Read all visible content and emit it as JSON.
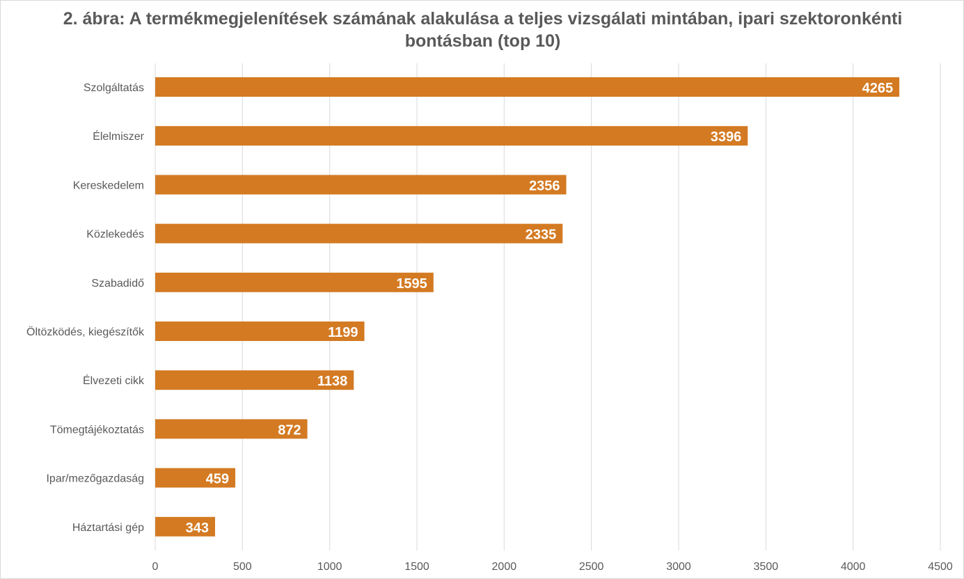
{
  "chart_data": {
    "type": "bar",
    "orientation": "horizontal",
    "title": "2. ábra: A termékmegjelenítések számának alakulása a teljes vizsgálati mintában, ipari szektoronkénti bontásban (top 10)",
    "categories": [
      "Szolgáltatás",
      "Élelmiszer",
      "Kereskedelem",
      "Közlekedés",
      "Szabadidő",
      "Öltözködés, kiegészítők",
      "Élvezeti cikk",
      "Tömegtájékoztatás",
      "Ipar/mezőgazdaság",
      "Háztartási gép"
    ],
    "values": [
      4265,
      3396,
      2356,
      2335,
      1595,
      1199,
      1138,
      872,
      459,
      343
    ],
    "xlim": [
      0,
      4500
    ],
    "xticks": [
      0,
      500,
      1000,
      1500,
      2000,
      2500,
      3000,
      3500,
      4000,
      4500
    ],
    "xlabel": "",
    "ylabel": "",
    "grid": true,
    "bar_color": "#d37a22",
    "data_labels": true
  }
}
